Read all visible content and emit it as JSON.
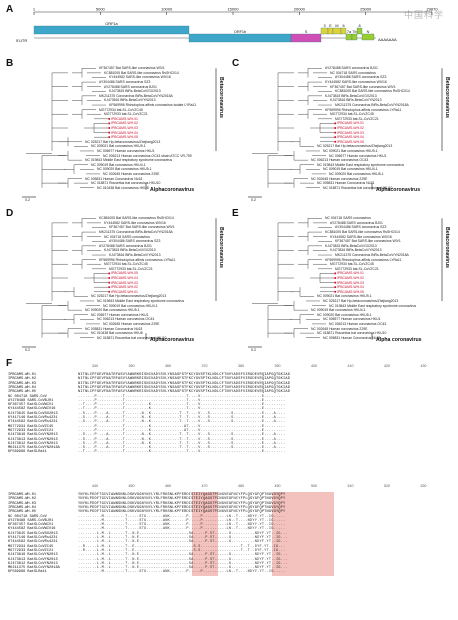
{
  "watermark": "中国科学",
  "panelA": {
    "letter": "A",
    "ticks": [
      "1",
      "5000",
      "10000",
      "15000",
      "20000",
      "25000",
      "29870"
    ],
    "utr5": "5'UTR",
    "utr3": "AAAAAAA",
    "orfs": [
      {
        "label": "ORF1a",
        "color": "#3ea6c8"
      },
      {
        "label": "ORF1b",
        "color": "#3ea6c8"
      },
      {
        "label": "S",
        "color": "#d04fb6"
      },
      {
        "label": "3",
        "color": "#e0d23a"
      },
      {
        "label": "E",
        "color": "#e0d23a"
      },
      {
        "label": "M",
        "color": "#e0d23a"
      },
      {
        "label": "6",
        "color": "#e0d23a"
      },
      {
        "label": "7a",
        "color": "#9acd32"
      },
      {
        "label": "7b",
        "color": "#9acd32"
      },
      {
        "label": "8",
        "color": "#9acd32"
      },
      {
        "label": "N",
        "color": "#9acd32"
      }
    ]
  },
  "trees": {
    "B": {
      "letter": "B",
      "leaves": [
        "KF367457 Bat SARS-like coronavirus WIV1",
        "KC881005 Bat SARS-like coronavirus RsSHC014",
        "KY444582 SARS-like coronavirus WIV16",
        "AY304486 SARS coronavirus SZ3",
        "AY278488 SARS coronavirus BJ01",
        "KJ473815 BtRs-BetaCoV/GX2013",
        "MK211375 Coronavirus BtRs-BetaCoV/YN2018A",
        "KJ473816 BtRs-BetaCoV/YN2013",
        "KF569996 Rhinolophus affinis coronavirus isolate LYRa11",
        "MG772934 bat-SL-CoVZC45",
        "MG772933 bat-SL-CoVZC21",
        "IPBCAMS-WH-01",
        "IPBCAMS-WH-02",
        "IPBCAMS-WH-03",
        "IPBCAMS-WH-04",
        "IPBCAMS-WH-05",
        "NC 025217 Bat Hp-betacoronavirus/Zhejiang2013",
        "NC 009021 Bat coronavirus HKU9-1",
        "NC 006577 Human coronavirus HKU1",
        "NC 006213 Human coronavirus OC43 strain ATCC VR-759",
        "NC 019843 Middle East respiratory syndrome coronavirus",
        "NC 009019 Bat coronavirus HKU4-1",
        "NC 009020 Bat coronavirus HKU5-1",
        "NC 002645 Human coronavirus 229E",
        "NC 005831 Human Coronavirus NL63",
        "NC 018871 Rousettus bat coronavirus HKU10",
        "NC 010438 Bat coronavirus HKU8"
      ],
      "clade1": "Betacoronavirus",
      "clade2": "Alphacoronavirus",
      "scale": "0.2"
    },
    "C": {
      "letter": "C",
      "leaves": [
        "AY278488 SARS coronavirus BJ01",
        "NC 004718 SARS coronavirus",
        "AY304486 SARS coronavirus SZ3",
        "KY444582 SARS-like coronavirus WIV16",
        "KF367457 Bat SARS-like coronavirus WIV1",
        "KC881005 Bat SARS-like coronavirus RsSHC014",
        "KJ473815 BtRs-BetaCoV/GX2013",
        "KJ473816 BtRs-BetaCoV/YN2013",
        "MK211375 Coronavirus BtRs-BetaCoV/YN2018A",
        "KF569996 Rhinolophus affinis coronavirus LYRa11",
        "MG772934 bat-SL-CoVZC45",
        "MG772933 bat-SL-CoVZC21",
        "IPBCAMS-WH-01",
        "IPBCAMS-WH-02",
        "IPBCAMS-WH-03",
        "IPBCAMS-WH-04",
        "IPBCAMS-WH-05",
        "NC 025217 Bat Hp-betacoronavirus/Zhejiang2013",
        "NC 009021 Bat coronavirus HKU9-1",
        "NC 006577 Human coronavirus HKU1",
        "NC 006213 Human coronavirus OC43",
        "NC 019843 Middle East respiratory syndrome coronavirus",
        "NC 009019 Bat coronavirus HKU4-1",
        "NC 009020 Bat coronavirus HKU5-1",
        "NC 002645 Human coronavirus 229E",
        "NC 005831 Human Coronavirus NL63",
        "NC 018871 Rousettus bat coronavirus HKU10"
      ],
      "clade1": "Betacoronavirus",
      "clade2": "Alphacoronavirus",
      "scale": "0.2"
    },
    "D": {
      "letter": "D",
      "leaves": [
        "KC881005 Bat SARS-like coronavirus RsSHC014",
        "KY444582 SARS-like coronavirus WIV16",
        "KF367457 Bat SARS-like coronavirus WIV1",
        "MK211375 Coronavirus BtRs-BetaCoV/YN2018A",
        "NC 004718 SARS coronavirus",
        "AY304486 SARS coronavirus SZ3",
        "AY278488 SARS coronavirus BJ01",
        "KJ473815 BtRs-BetaCoV/GX2013",
        "KJ473816 BtRs-BetaCoV/YN2013",
        "KF569996 Rhinolophus affinis coronavirus LYRa11",
        "MG772934 bat-SL-CoVZC45",
        "MG772933 bat-SL-CoVZC21",
        "IPBCAMS-WH-05",
        "IPBCAMS-WH-04",
        "IPBCAMS-WH-03",
        "IPBCAMS-WH-02",
        "IPBCAMS-WH-01",
        "NC 025217 Bat Hp-betacoronavirus/Zhejiang2013",
        "NC 019843 Middle East respiratory syndrome coronavirus",
        "NC 009019 Bat coronavirus HKU4-1",
        "NC 009020 Bat coronavirus HKU5-1",
        "NC 006577 Human coronavirus HKU1",
        "NC 006213 Human coronavirus OC43",
        "NC 002645 Human coronavirus 229E",
        "NC 005831 Human Coronavirus NL63",
        "NC 010438 Bat coronavirus HKU8",
        "NC 018871 Rousettus bat coronavirus HKU10"
      ],
      "clade1": "Betacoronavirus",
      "clade2": "Alphacoronavirus",
      "scale": "0.2"
    },
    "E": {
      "letter": "E",
      "leaves": [
        "NC 004718 SARS coronavirus",
        "AY278488 SARS coronavirus BJ01",
        "AY304486 SARS coronavirus SZ3",
        "KC881005 Bat SARS-like coronavirus RsSHC014",
        "KY444582 SARS-like coronavirus WIV16",
        "KF367457 Bat SARS-like coronavirus WIV1",
        "KJ473815 BtRs-BetaCoV/GX2013",
        "KJ473816 BtRs-BetaCoV/YN2013",
        "MK211375 Coronavirus BtRs-BetaCoV/YN2018A",
        "KF569996 Rhinolophus affinis coronavirus LYRa11",
        "MG772934 bat-SL-CoVZC45",
        "MG772933 bat-SL-CoVZC21",
        "IPBCAMS-WH-01",
        "IPBCAMS-WH-02",
        "IPBCAMS-WH-03",
        "IPBCAMS-WH-04",
        "IPBCAMS-WH-05",
        "NC 009021 Bat coronavirus HKU9-1",
        "NC 025217 Bat Hp-betacoronavirus/Zhejiang2013",
        "NC 019843 Middle East respiratory syndrome coronavirus",
        "NC 009019 Bat coronavirus HKU4-1",
        "NC 009020 Bat coronavirus HKU5-1",
        "NC 006577 Human coronavirus HKU1",
        "NC 006213 Human coronavirus OC43",
        "NC 002645 Human coronavirus 229E",
        "NC 018871 Rousettus bat coronavirus HKU10",
        "NC 005831 Human Coronavirus NL63"
      ],
      "clade1": "Betacoronavirus",
      "clade2": "Alpha coronavirus",
      "scale": "0.2"
    }
  },
  "panelF": {
    "letter": "F",
    "positions_top": [
      "340",
      "350",
      "360",
      "370",
      "380",
      "390",
      "400",
      "410",
      "420",
      "430"
    ],
    "positions_bottom": [
      "440",
      "450",
      "460",
      "470",
      "480",
      "490",
      "500",
      "510",
      "520",
      "530"
    ],
    "names": [
      "IPBCAMS-WH-01",
      "IPBCAMS-WH-02",
      "IPBCAMS-WH-03",
      "IPBCAMS-WH-04",
      "IPBCAMS-WH-05",
      "NC 004718 SARS-CoV",
      "AY278488 SARS-CoVBJ01",
      "KF367457 BatSLCoVWIV1",
      "KY444582 BatSLCoVWIV16",
      "KJ473815 BatSLCoVGX2013",
      "KY417146 BatSLCoVRs4231",
      "KT444582 BatSLCoVRs4231",
      "MG772934 BatSLCoVZC45",
      "MG772933 BatSLCoVZC21",
      "KJ473816 BatSLCoVYN2013",
      "KJ473813 BatSLCoVYN2013",
      "KJ473812 BatSLCoVYN2013",
      "MK211375 BatSLCoVYN2018A",
      "KF569996 BatSLRa11"
    ],
    "seq_top": [
      "NITNLCPFGEVFNATRFASVYAWNRKRISNCVADYSVLYNSASFSTFKCYGVSPTKLNDLCFTNVYADSFVIRGDEVRQIAPGQTGKIAD",
      "NITNLCPFGEVFNATRFASVYAWNRKRISNCVADYSVLYNSASFSTFKCYGVSPTKLNDLCFTNVYADSFVIRGDEVRQIAPGQTGKIAD",
      "NITNLCPFGEVFNATRFASVYAWNRKRISNCVADYSVLYNSASFSTFKCYGVSPTKLNDLCFTNVYADSFVIRGDEVRQIAPGQTGKIAD",
      "NITNLCPFGEVFNATRFASVYAWNRKRISNCVADYSVLYNSASFSTFKCYGVSPTKLNDLCFTNVYADSFVIRGDEVRQIAPGQTGKIAD",
      "NITNLCPFGEVFNATRFASVYAWNRKRISNCVADYSVLYNSASFSTFKCYGVSPTKLNDLCFTNVYADSFVIRGDEVRQIAPGQTGKIAD",
      ".......P...........T..........................T....V..........................E.........",
      ".......P...........T..........................T....V..........................E.........",
      "..T....P...........T..........K...............T....V..........................E.........",
      "..T....P...........T..........K...............T....V..........................E.........",
      "..S....P....A......T.......N..K............T..T....V...S.........S............E....A....",
      "..S....P....A......T.......N..K............T..T....V...S.........S............E....A....",
      "..S....P....A......T.......N..K............T..T....V...S.........S............E....A....",
      ".......P...........T..........K..............AT....V..........................E.........",
      ".......P...........T..........K..............AT....V..........................E.........",
      "..S....P....A......T.......N..K............T..T....V...S.........S............E....A....",
      "..S....P....A......T.......N..K............T..T....V...S.........S............E....A....",
      "..S....P....A......T.......N..K............T..T....V...S.........S............E....A....",
      "..S....P....A......T..........K............T..T....V...S.........S............E....A....",
      "..T....P...........T..........K...............T....V..........................E........."
    ],
    "seq_bottom": [
      "YNYKLPDDFTGCVIAWNSNNLDSKVGGNYNYLYRLFRKSNLKPFERDISTEIYQAGSTPCNGVEGFNCYFPLQSYGFQPTNGVGYQPY",
      "YNYKLPDDFTGCVIAWNSNNLDSKVGGNYNYLYRLFRKSNLKPFERDISTEIYQAGSTPCNGVEGFNCYFPLQSYGFQPTNGVGYQPY",
      "YNYKLPDDFTGCVIAWNSNNLDSKVGGNYNYLYRLFRKSNLKPFERDISTEIYQAGSTPCNGVEGFNCYFPLQSYGFQPTNGVGYQPY",
      "YNYKLPDDFTGCVIAWNSNNLDSKVGGNYNYLYRLFRKSNLKPFERDISTEIYQAGSTPCNGVEGFNCYFPLQSYGFQPTNGVGYQPY",
      "YNYKLPDDFTGCVIAWNSNNLDSKVGGNYNYLYRLFRKSNLKPFERDISTEIYQAGSTPCNGVEGFNCYFPLQSYGFQPTNGVGYQPY",
      "..........M.........T.....STG.......ANK.......P.....P...-..---.LN..T....NDYY.YT..IG.....",
      "..........M.........T.....STG.......ANK.......P.....P...-..---.LN..T....NDYY.YT..IG.....",
      "..........M.........T.....STG.......ANK.......P.....P...-..---.LN..T....NDYY.YT..IG.....",
      "..........M.........T.....STG.......ANK.......P.....P...-..---.LN..T....NDYY.YT..IG.....",
      "........L.M..L......T..N.E---------------------SA.....P.ST-----.G..........NDYF.YT..IG...",
      "........L.M..L......T..N.E---------------------SA.....P.ST-----.G..........NDYF.YT..IG...",
      "........L.M..L......T..N.E---------------------SA.....P.ST-----.G..........NDYF.YT..IG...",
      "..R.....L.M..L......T..E.------------------------S.S....-------.----.T..T..DYF.YT..IG...",
      "..R.....L.M..L......T..E.------------------------S.S....-------.----.T..T..DYF.YT..IG...",
      "........L.M..L......T..N.E---------------------SA.....P.ST-----.G..........NDYF.YT..IG...",
      "........L.M..L......T..N.E---------------------SA.....P.ST-----.G..........NDYF.YT..IG...",
      "........L.M..L......T..N.E---------------------SA.....P.ST-----.G..........NDYF.YT..IG...",
      "........L.M..L......T..N.E---------------------SA.....P.ST-----.G..........NDYF.YT..IG...",
      "..........M.........T.....STG.......ANK.......P.....P...-..---.LN..T....NDYY.YT..IG....."
    ]
  }
}
